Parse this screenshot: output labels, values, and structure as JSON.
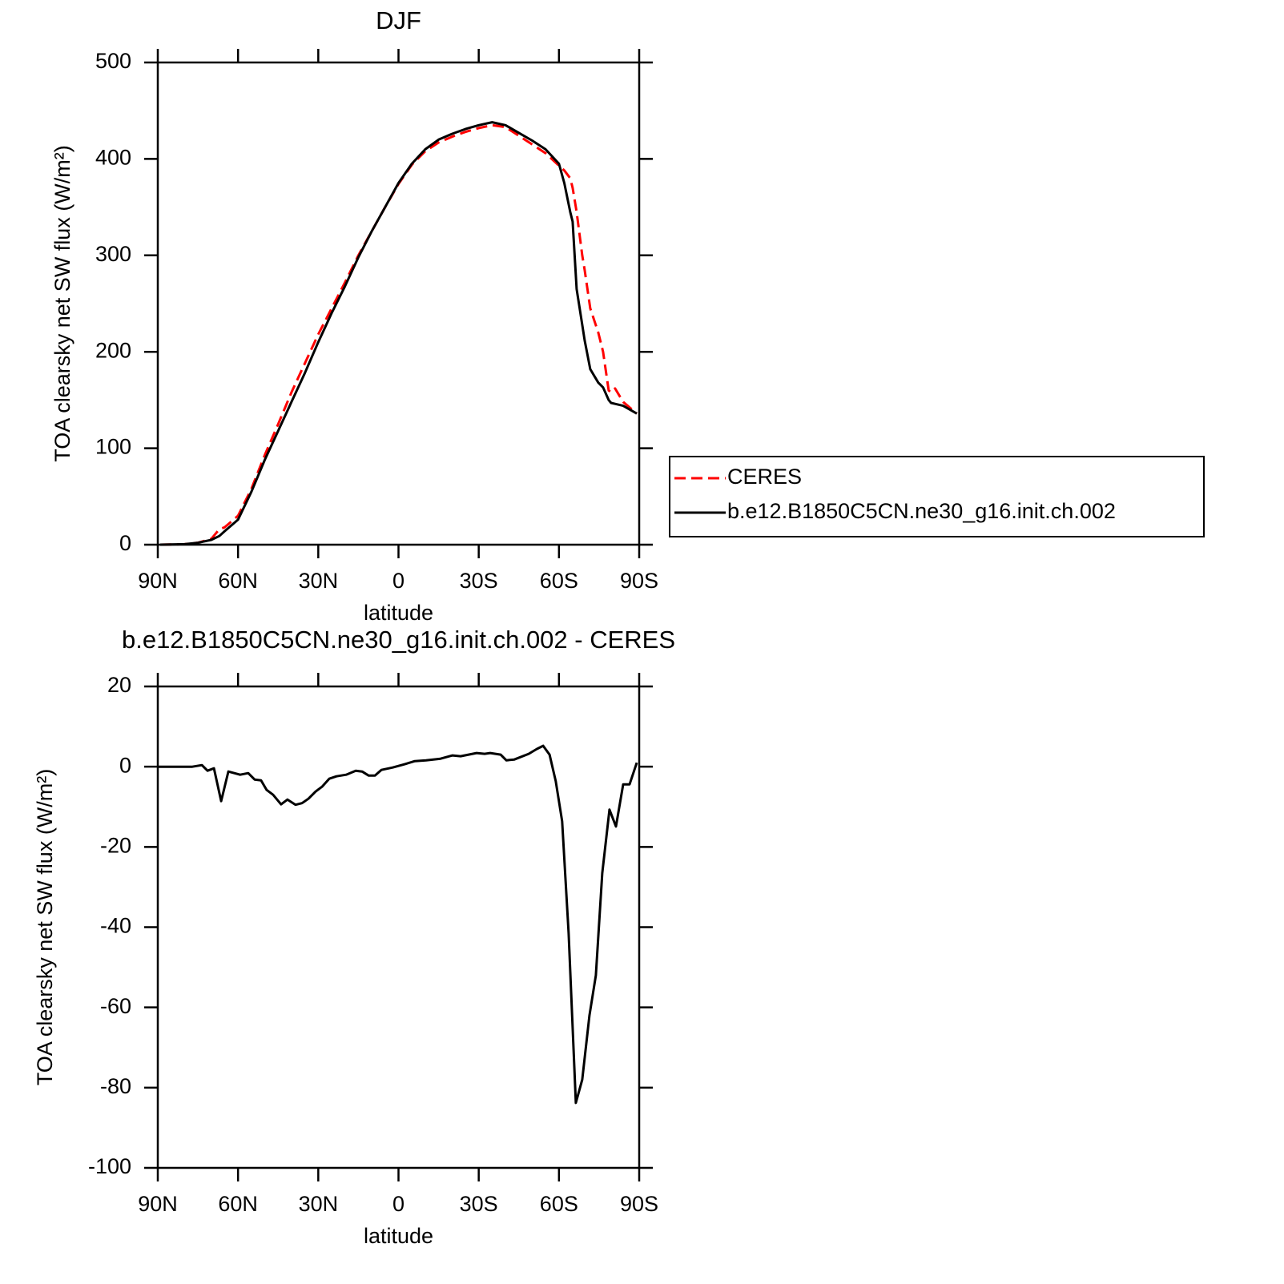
{
  "chart_data": [
    {
      "type": "line",
      "title": "DJF",
      "xlabel": "latitude",
      "ylabel": "TOA clearsky net SW flux (W/m²)",
      "x": [
        89.1,
        80,
        75,
        70,
        67,
        65,
        60,
        55,
        50,
        45,
        40,
        35,
        30,
        25,
        20,
        15,
        10,
        5,
        0,
        -5,
        -10,
        -15,
        -20,
        -25,
        -30,
        -35,
        -40,
        -45,
        -50,
        -55,
        -60,
        -62,
        -64.2,
        -65.1,
        -66.6,
        -68.7,
        -69.6,
        -71.7,
        -74.7,
        -76.5,
        -78.6,
        -79.5,
        -81,
        -84,
        -89.1
      ],
      "series": [
        {
          "name": "CERES",
          "color": "#ff0000",
          "dash": true,
          "values": [
            0,
            0.5,
            2,
            6,
            16,
            18,
            30,
            58,
            93,
            125,
            158,
            188,
            218,
            245,
            272,
            300,
            325,
            350,
            374,
            394,
            408,
            417,
            423,
            428,
            432,
            435,
            433,
            424,
            415,
            406,
            393,
            388,
            380,
            370,
            345,
            300,
            285,
            245,
            220,
            200,
            160,
            158,
            162,
            148,
            136
          ]
        },
        {
          "name": "b.e12.B1850C5CN.ne30_g16.init.ch.002",
          "color": "#000000",
          "dash": false,
          "values": [
            0,
            0.5,
            2,
            5,
            9,
            14,
            26,
            55,
            88,
            118,
            148,
            178,
            210,
            240,
            268,
            298,
            325,
            350,
            375,
            395,
            410,
            420,
            426,
            431,
            435,
            438,
            435,
            427,
            419,
            410,
            395,
            375,
            345,
            335,
            265,
            228,
            212,
            182,
            168,
            163,
            150,
            147,
            146,
            144,
            136
          ]
        }
      ],
      "xlim": [
        90,
        -90
      ],
      "xticks": [
        {
          "value": 90,
          "label": "90N"
        },
        {
          "value": 60,
          "label": "60N"
        },
        {
          "value": 30,
          "label": "30N"
        },
        0,
        {
          "value": -30,
          "label": "30S"
        },
        {
          "value": -60,
          "label": "60S"
        },
        {
          "value": -90,
          "label": "90S"
        }
      ],
      "ylim": [
        0,
        500
      ],
      "yticks": [
        0,
        100,
        200,
        300,
        400,
        500
      ],
      "legend": "right"
    },
    {
      "type": "line",
      "title": "b.e12.B1850C5CN.ne30_g16.init.ch.002 - CERES",
      "xlabel": "latitude",
      "ylabel": "TOA clearsky net SW flux (W/m²)",
      "x": [
        90,
        77.1,
        73.5,
        71.4,
        69,
        66.3,
        63.6,
        59.2,
        56.2,
        53.8,
        51.4,
        49.3,
        46.9,
        43.9,
        41.5,
        38.5,
        36.1,
        33.7,
        31,
        28.6,
        25.9,
        23.2,
        19.6,
        16,
        13.6,
        11.2,
        8.8,
        6.4,
        2.2,
        -2.2,
        -6.1,
        -10.3,
        -15.7,
        -20.2,
        -23.2,
        -26.2,
        -29.2,
        -32.2,
        -34.3,
        -38.2,
        -40.3,
        -43.3,
        -48.7,
        -51.7,
        -54.1,
        -56.5,
        -58.8,
        -61.2,
        -63.6,
        -66.3,
        -68.7,
        -71.4,
        -73.8,
        -76.2,
        -78.9,
        -81.3,
        -84,
        -86.4,
        -89.1
      ],
      "series": [
        {
          "name": "b.e12.B1850C5CN.ne30_g16.init.ch.002 - CERES",
          "color": "#000000",
          "dash": false,
          "values": [
            0,
            0,
            0.4,
            -1,
            -0.4,
            -8.6,
            -1.2,
            -2,
            -1.6,
            -3.2,
            -3.4,
            -5.8,
            -7,
            -9.4,
            -8.2,
            -9.5,
            -9.1,
            -8,
            -6.2,
            -5,
            -3,
            -2.4,
            -2,
            -1,
            -1.2,
            -2.2,
            -2.2,
            -0.8,
            -0.2,
            0.6,
            1.4,
            1.6,
            2,
            2.8,
            2.6,
            3,
            3.4,
            3.2,
            3.4,
            3,
            1.6,
            1.8,
            3.2,
            4.4,
            5.2,
            3,
            -3.6,
            -13.6,
            -41.5,
            -83.8,
            -78,
            -62,
            -52,
            -26.5,
            -10.7,
            -14.9,
            -4.4,
            -4.4,
            1
          ]
        }
      ],
      "xlim": [
        90,
        -90
      ],
      "xticks": [
        {
          "value": 90,
          "label": "90N"
        },
        {
          "value": 60,
          "label": "60N"
        },
        {
          "value": 30,
          "label": "30N"
        },
        0,
        {
          "value": -30,
          "label": "30S"
        },
        {
          "value": -60,
          "label": "60S"
        },
        {
          "value": -90,
          "label": "90S"
        }
      ],
      "ylim": [
        -100,
        20
      ],
      "yticks": [
        -100,
        -80,
        -60,
        -40,
        -20,
        0,
        20
      ]
    }
  ]
}
